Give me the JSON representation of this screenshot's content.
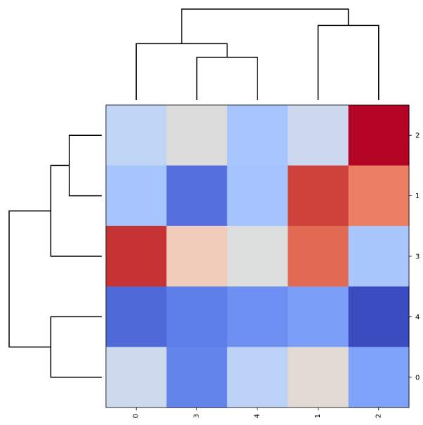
{
  "chart_data": {
    "type": "heatmap",
    "colormap": "coolwarm",
    "grid": false,
    "row_labels": [
      "2",
      "1",
      "3",
      "4",
      "0"
    ],
    "col_labels": [
      "0",
      "3",
      "4",
      "1",
      "2"
    ],
    "cell_colors": [
      [
        "#c0d4f5",
        "#dddcdc",
        "#a7c5fe",
        "#cbd8ee",
        "#b40426"
      ],
      [
        "#a6c4fe",
        "#5470de",
        "#a5c3fe",
        "#cd423b",
        "#ec7f63"
      ],
      [
        "#c53334",
        "#f0cdbb",
        "#dcdddd",
        "#e26952",
        "#a9c6fd"
      ],
      [
        "#4f69d9",
        "#5f7fe8",
        "#6c8ff1",
        "#7b9ff9",
        "#3b4cc0"
      ],
      [
        "#cdd9ec",
        "#6384eb",
        "#bcd2f7",
        "#e2dad5",
        "#80a3fa"
      ]
    ],
    "row_dendrogram": [
      {
        "a": 0,
        "b": 1,
        "height": 0.35
      },
      {
        "a": 0.5,
        "b": 2,
        "height": 0.55
      },
      {
        "a": 3,
        "b": 4,
        "height": 0.55
      },
      {
        "a": 1.25,
        "b": 3.5,
        "height": 1.0
      }
    ],
    "col_dendrogram": [
      {
        "a": 1,
        "b": 2,
        "height": 0.47
      },
      {
        "a": 0,
        "b": 1.5,
        "height": 0.62
      },
      {
        "a": 3,
        "b": 4,
        "height": 0.82
      },
      {
        "a": 0.75,
        "b": 3.5,
        "height": 1.0
      }
    ]
  }
}
